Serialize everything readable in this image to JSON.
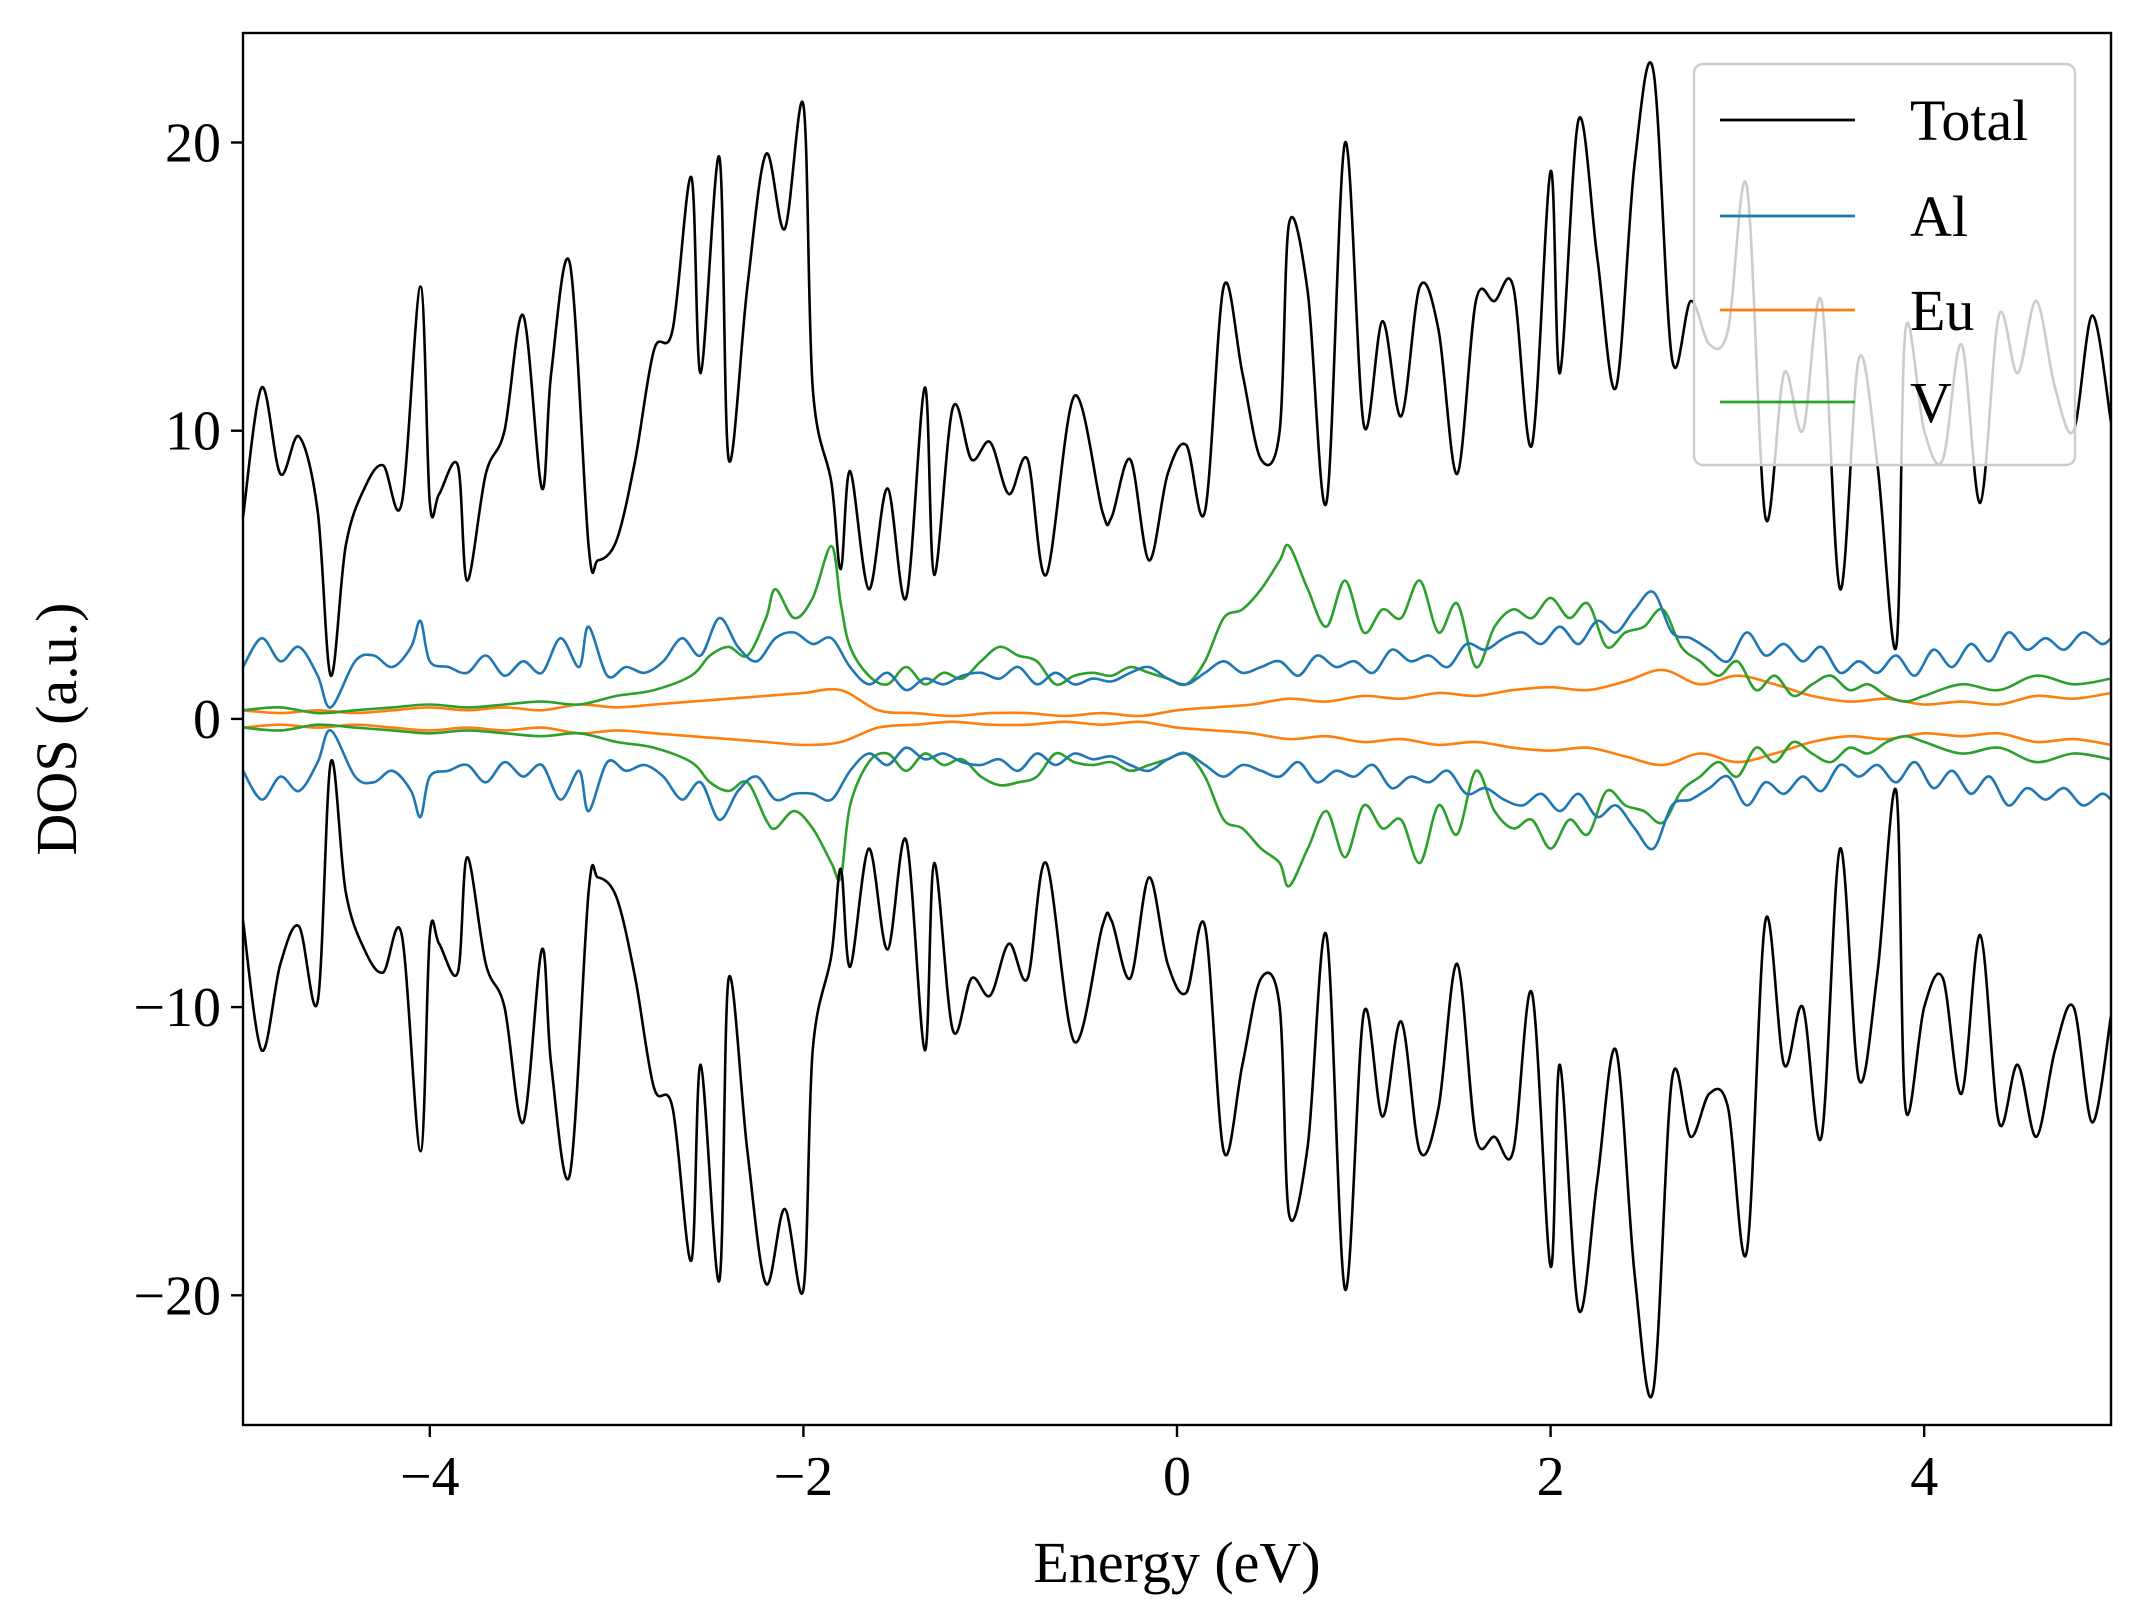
{
  "chart_data": {
    "type": "line",
    "xlabel": "Energy (eV)",
    "ylabel": "DOS (a.u.)",
    "xlim": [
      -5,
      5
    ],
    "ylim": [
      -24.5,
      23.8
    ],
    "xticks": [
      -4,
      -2,
      0,
      2,
      4
    ],
    "yticks": [
      -20,
      -10,
      0,
      10,
      20
    ],
    "xtick_labels": [
      "−4",
      "−2",
      "0",
      "2",
      "4"
    ],
    "ytick_labels": [
      "−20",
      "−10",
      "0",
      "10",
      "20"
    ],
    "grid": false,
    "legend_position": "top-right",
    "spin_polarized": true,
    "series": [
      {
        "name": "Total",
        "color": "#000000",
        "x": [
          -5.0,
          -4.9,
          -4.8,
          -4.7,
          -4.6,
          -4.53,
          -4.45,
          -4.35,
          -4.25,
          -4.15,
          -4.05,
          -4.0,
          -3.95,
          -3.85,
          -3.8,
          -3.7,
          -3.6,
          -3.5,
          -3.4,
          -3.35,
          -3.25,
          -3.15,
          -3.1,
          -3.0,
          -2.9,
          -2.8,
          -2.7,
          -2.6,
          -2.55,
          -2.45,
          -2.4,
          -2.3,
          -2.2,
          -2.1,
          -2.0,
          -1.95,
          -1.85,
          -1.8,
          -1.75,
          -1.65,
          -1.55,
          -1.45,
          -1.35,
          -1.3,
          -1.2,
          -1.1,
          -1.0,
          -0.9,
          -0.8,
          -0.7,
          -0.55,
          -0.4,
          -0.35,
          -0.25,
          -0.15,
          -0.05,
          0.05,
          0.15,
          0.25,
          0.35,
          0.45,
          0.55,
          0.6,
          0.7,
          0.8,
          0.9,
          1.0,
          1.1,
          1.2,
          1.3,
          1.4,
          1.5,
          1.6,
          1.7,
          1.8,
          1.9,
          2.0,
          2.05,
          2.15,
          2.25,
          2.35,
          2.45,
          2.55,
          2.65,
          2.75,
          2.85,
          2.95,
          3.05,
          3.15,
          3.25,
          3.35,
          3.45,
          3.55,
          3.65,
          3.75,
          3.85,
          3.9,
          4.0,
          4.1,
          4.2,
          4.3,
          4.4,
          4.5,
          4.6,
          4.7,
          4.8,
          4.9,
          5.0
        ],
        "up": [
          7.0,
          11.5,
          8.5,
          9.8,
          7.2,
          1.5,
          6.0,
          8.0,
          8.8,
          7.5,
          15.0,
          7.5,
          7.8,
          8.8,
          4.8,
          8.5,
          10.0,
          14.0,
          8.0,
          12.0,
          15.8,
          6.0,
          5.5,
          6.2,
          9.0,
          12.8,
          13.5,
          18.8,
          12.0,
          19.5,
          9.0,
          15.0,
          19.6,
          17.0,
          21.3,
          11.5,
          8.2,
          5.2,
          8.6,
          4.5,
          8.0,
          4.2,
          11.5,
          5.0,
          10.8,
          9.0,
          9.6,
          7.8,
          9.0,
          5.0,
          11.2,
          7.2,
          7.0,
          9.0,
          5.5,
          8.5,
          9.5,
          7.2,
          15.0,
          12.0,
          9.0,
          10.0,
          17.2,
          14.8,
          7.5,
          20.0,
          10.2,
          13.8,
          10.5,
          15.0,
          13.5,
          8.5,
          14.5,
          14.5,
          15.0,
          9.5,
          19.0,
          12.0,
          20.8,
          16.0,
          11.5,
          19.3,
          22.5,
          12.5,
          14.5,
          13.0,
          13.5,
          18.5,
          7.0,
          12.0,
          10.0,
          14.5,
          4.5,
          12.5,
          8.8,
          2.5,
          13.5,
          10.0,
          9.0,
          13.0,
          7.5,
          14.0,
          12.0,
          14.5,
          11.5,
          10.0,
          14.0,
          10.3
        ],
        "down": [
          -7.0,
          -11.5,
          -8.5,
          -7.2,
          -9.8,
          -1.5,
          -6.0,
          -8.0,
          -8.8,
          -7.5,
          -15.0,
          -7.5,
          -7.8,
          -8.8,
          -4.8,
          -8.5,
          -10.0,
          -14.0,
          -8.0,
          -12.0,
          -15.8,
          -6.0,
          -5.5,
          -6.2,
          -9.0,
          -12.8,
          -13.5,
          -18.8,
          -12.0,
          -19.5,
          -9.0,
          -15.0,
          -19.6,
          -17.0,
          -19.8,
          -11.5,
          -8.2,
          -5.2,
          -8.6,
          -4.5,
          -8.0,
          -4.2,
          -11.5,
          -5.0,
          -10.8,
          -9.0,
          -9.6,
          -7.8,
          -9.0,
          -5.0,
          -11.2,
          -7.2,
          -7.0,
          -9.0,
          -5.5,
          -8.5,
          -9.5,
          -7.2,
          -15.0,
          -12.0,
          -9.0,
          -10.0,
          -17.2,
          -14.8,
          -7.5,
          -19.8,
          -10.2,
          -13.8,
          -10.5,
          -15.0,
          -13.5,
          -8.5,
          -14.5,
          -14.5,
          -15.0,
          -9.5,
          -19.0,
          -12.0,
          -20.5,
          -16.0,
          -11.5,
          -19.3,
          -23.3,
          -12.5,
          -14.5,
          -13.0,
          -13.5,
          -18.5,
          -7.0,
          -12.0,
          -10.0,
          -14.5,
          -4.5,
          -12.5,
          -8.8,
          -2.5,
          -13.5,
          -10.0,
          -9.0,
          -13.0,
          -7.5,
          -14.0,
          -12.0,
          -14.5,
          -11.5,
          -10.0,
          -14.0,
          -10.3
        ]
      },
      {
        "name": "Al",
        "color": "#1f77b4",
        "x": [
          -5.0,
          -4.9,
          -4.8,
          -4.7,
          -4.6,
          -4.53,
          -4.4,
          -4.3,
          -4.2,
          -4.1,
          -4.05,
          -4.0,
          -3.9,
          -3.8,
          -3.7,
          -3.6,
          -3.5,
          -3.4,
          -3.3,
          -3.2,
          -3.15,
          -3.05,
          -2.95,
          -2.85,
          -2.75,
          -2.65,
          -2.55,
          -2.45,
          -2.35,
          -2.25,
          -2.15,
          -2.05,
          -1.95,
          -1.85,
          -1.75,
          -1.65,
          -1.55,
          -1.45,
          -1.35,
          -1.25,
          -1.15,
          -1.05,
          -0.95,
          -0.85,
          -0.75,
          -0.65,
          -0.55,
          -0.45,
          -0.35,
          -0.25,
          -0.15,
          -0.05,
          0.05,
          0.15,
          0.25,
          0.35,
          0.45,
          0.55,
          0.65,
          0.75,
          0.85,
          0.95,
          1.05,
          1.15,
          1.25,
          1.35,
          1.45,
          1.55,
          1.65,
          1.75,
          1.85,
          1.95,
          2.05,
          2.15,
          2.25,
          2.35,
          2.45,
          2.55,
          2.65,
          2.75,
          2.85,
          2.95,
          3.05,
          3.15,
          3.25,
          3.35,
          3.45,
          3.55,
          3.65,
          3.75,
          3.85,
          3.95,
          4.05,
          4.15,
          4.25,
          4.35,
          4.45,
          4.55,
          4.65,
          4.75,
          4.85,
          4.95,
          5.0
        ],
        "up": [
          1.8,
          2.8,
          2.0,
          2.5,
          1.5,
          0.4,
          2.0,
          2.2,
          1.8,
          2.5,
          3.4,
          2.0,
          1.8,
          1.6,
          2.2,
          1.5,
          2.0,
          1.6,
          2.8,
          1.8,
          3.2,
          1.5,
          1.8,
          1.6,
          2.0,
          2.8,
          2.2,
          3.5,
          2.5,
          2.0,
          2.8,
          3.0,
          2.6,
          2.8,
          1.8,
          1.2,
          1.6,
          1.0,
          1.4,
          1.2,
          1.5,
          1.6,
          1.4,
          1.8,
          1.2,
          1.6,
          1.2,
          1.4,
          1.3,
          1.6,
          1.8,
          1.4,
          1.2,
          1.6,
          2.0,
          1.6,
          1.8,
          2.0,
          1.5,
          2.2,
          1.8,
          2.0,
          1.6,
          2.4,
          2.0,
          2.2,
          1.8,
          2.6,
          2.4,
          2.8,
          3.0,
          2.6,
          3.2,
          2.6,
          3.4,
          3.0,
          3.8,
          4.4,
          3.0,
          2.8,
          2.4,
          2.0,
          3.0,
          2.2,
          2.6,
          2.0,
          2.5,
          1.6,
          2.0,
          1.6,
          2.2,
          1.5,
          2.4,
          1.8,
          2.6,
          2.0,
          3.0,
          2.4,
          2.8,
          2.4,
          3.0,
          2.6,
          2.8
        ],
        "down": [
          -1.8,
          -2.8,
          -2.0,
          -2.5,
          -1.5,
          -0.4,
          -2.0,
          -2.2,
          -1.8,
          -2.5,
          -3.4,
          -2.0,
          -1.8,
          -1.6,
          -2.2,
          -1.5,
          -2.0,
          -1.6,
          -2.8,
          -1.8,
          -3.2,
          -1.5,
          -1.8,
          -1.6,
          -2.0,
          -2.8,
          -2.2,
          -3.5,
          -2.5,
          -2.0,
          -2.8,
          -2.6,
          -2.6,
          -2.8,
          -1.8,
          -1.2,
          -1.6,
          -1.0,
          -1.4,
          -1.2,
          -1.5,
          -1.6,
          -1.4,
          -1.8,
          -1.2,
          -1.6,
          -1.2,
          -1.4,
          -1.3,
          -1.6,
          -1.8,
          -1.4,
          -1.2,
          -1.6,
          -2.0,
          -1.6,
          -1.8,
          -2.0,
          -1.5,
          -2.2,
          -1.8,
          -2.0,
          -1.6,
          -2.4,
          -2.0,
          -2.2,
          -1.8,
          -2.6,
          -2.4,
          -2.8,
          -3.0,
          -2.6,
          -3.2,
          -2.6,
          -3.4,
          -3.0,
          -3.8,
          -4.5,
          -3.0,
          -2.8,
          -2.4,
          -2.0,
          -3.0,
          -2.2,
          -2.6,
          -2.0,
          -2.5,
          -1.6,
          -2.0,
          -1.6,
          -2.2,
          -1.5,
          -2.4,
          -1.8,
          -2.6,
          -2.0,
          -3.0,
          -2.4,
          -2.8,
          -2.4,
          -3.0,
          -2.6,
          -2.8
        ]
      },
      {
        "name": "Eu",
        "color": "#ff7f0e",
        "x": [
          -5.0,
          -4.8,
          -4.6,
          -4.4,
          -4.2,
          -4.0,
          -3.8,
          -3.6,
          -3.4,
          -3.2,
          -3.0,
          -2.8,
          -2.6,
          -2.4,
          -2.2,
          -2.0,
          -1.8,
          -1.6,
          -1.4,
          -1.2,
          -1.0,
          -0.8,
          -0.6,
          -0.4,
          -0.2,
          0.0,
          0.2,
          0.4,
          0.6,
          0.8,
          1.0,
          1.2,
          1.4,
          1.6,
          1.8,
          2.0,
          2.2,
          2.4,
          2.6,
          2.8,
          3.0,
          3.2,
          3.4,
          3.6,
          3.8,
          4.0,
          4.2,
          4.4,
          4.6,
          4.8,
          5.0
        ],
        "up": [
          0.3,
          0.2,
          0.3,
          0.2,
          0.3,
          0.4,
          0.3,
          0.4,
          0.3,
          0.5,
          0.4,
          0.5,
          0.6,
          0.7,
          0.8,
          0.9,
          1.0,
          0.3,
          0.2,
          0.1,
          0.2,
          0.2,
          0.1,
          0.2,
          0.1,
          0.3,
          0.4,
          0.5,
          0.7,
          0.6,
          0.8,
          0.7,
          0.9,
          0.8,
          1.0,
          1.1,
          1.0,
          1.3,
          1.7,
          1.2,
          1.5,
          1.2,
          0.8,
          0.6,
          0.7,
          0.5,
          0.6,
          0.5,
          0.8,
          0.7,
          0.9
        ],
        "down": [
          -0.3,
          -0.2,
          -0.3,
          -0.2,
          -0.3,
          -0.4,
          -0.3,
          -0.4,
          -0.3,
          -0.5,
          -0.4,
          -0.5,
          -0.6,
          -0.7,
          -0.8,
          -0.9,
          -0.8,
          -0.3,
          -0.2,
          -0.1,
          -0.2,
          -0.2,
          -0.1,
          -0.2,
          -0.1,
          -0.3,
          -0.4,
          -0.5,
          -0.7,
          -0.6,
          -0.8,
          -0.7,
          -0.9,
          -0.8,
          -1.0,
          -1.1,
          -1.0,
          -1.3,
          -1.6,
          -1.2,
          -1.5,
          -1.2,
          -0.8,
          -0.6,
          -0.7,
          -0.5,
          -0.6,
          -0.5,
          -0.8,
          -0.7,
          -0.9
        ]
      },
      {
        "name": "V",
        "color": "#2ca02c",
        "x": [
          -5.0,
          -4.8,
          -4.6,
          -4.4,
          -4.2,
          -4.0,
          -3.8,
          -3.6,
          -3.4,
          -3.2,
          -3.0,
          -2.8,
          -2.6,
          -2.5,
          -2.4,
          -2.3,
          -2.2,
          -2.15,
          -2.05,
          -1.95,
          -1.85,
          -1.8,
          -1.75,
          -1.65,
          -1.55,
          -1.45,
          -1.35,
          -1.25,
          -1.15,
          -1.05,
          -0.95,
          -0.85,
          -0.75,
          -0.65,
          -0.55,
          -0.45,
          -0.35,
          -0.25,
          -0.15,
          -0.05,
          0.05,
          0.15,
          0.25,
          0.35,
          0.45,
          0.55,
          0.6,
          0.7,
          0.8,
          0.9,
          1.0,
          1.1,
          1.2,
          1.3,
          1.4,
          1.5,
          1.6,
          1.7,
          1.8,
          1.9,
          2.0,
          2.1,
          2.2,
          2.3,
          2.4,
          2.5,
          2.6,
          2.7,
          2.8,
          2.9,
          3.0,
          3.1,
          3.2,
          3.3,
          3.4,
          3.5,
          3.6,
          3.7,
          3.8,
          3.9,
          4.0,
          4.2,
          4.4,
          4.6,
          4.8,
          5.0
        ],
        "up": [
          0.3,
          0.4,
          0.2,
          0.3,
          0.4,
          0.5,
          0.4,
          0.5,
          0.6,
          0.5,
          0.8,
          1.0,
          1.5,
          2.2,
          2.5,
          2.2,
          3.5,
          4.5,
          3.5,
          4.2,
          6.0,
          4.0,
          2.5,
          1.5,
          1.2,
          1.8,
          1.2,
          1.6,
          1.4,
          2.0,
          2.5,
          2.2,
          2.0,
          1.2,
          1.5,
          1.6,
          1.5,
          1.8,
          1.6,
          1.4,
          1.2,
          2.0,
          3.5,
          3.8,
          4.5,
          5.5,
          6.0,
          4.5,
          3.2,
          4.8,
          3.0,
          3.8,
          3.5,
          4.8,
          3.0,
          4.0,
          1.8,
          3.2,
          3.8,
          3.5,
          4.2,
          3.5,
          4.0,
          2.5,
          3.0,
          3.2,
          3.8,
          2.5,
          2.0,
          1.5,
          2.0,
          1.0,
          1.5,
          0.8,
          1.2,
          1.5,
          1.0,
          1.2,
          0.8,
          0.6,
          0.8,
          1.2,
          1.0,
          1.5,
          1.2,
          1.4
        ],
        "down": [
          -0.3,
          -0.4,
          -0.2,
          -0.3,
          -0.4,
          -0.5,
          -0.4,
          -0.5,
          -0.6,
          -0.5,
          -0.8,
          -1.0,
          -1.5,
          -2.2,
          -2.5,
          -2.2,
          -3.5,
          -3.8,
          -3.2,
          -3.8,
          -5.0,
          -5.5,
          -3.0,
          -1.5,
          -1.2,
          -1.8,
          -1.2,
          -1.6,
          -1.4,
          -2.0,
          -2.3,
          -2.2,
          -2.0,
          -1.2,
          -1.5,
          -1.6,
          -1.5,
          -1.8,
          -1.6,
          -1.4,
          -1.2,
          -2.0,
          -3.5,
          -3.8,
          -4.5,
          -5.0,
          -5.8,
          -4.5,
          -3.2,
          -4.8,
          -3.0,
          -3.8,
          -3.5,
          -5.0,
          -3.0,
          -4.0,
          -1.8,
          -3.2,
          -3.8,
          -3.5,
          -4.5,
          -3.5,
          -4.0,
          -2.5,
          -3.0,
          -3.2,
          -3.6,
          -2.5,
          -2.0,
          -1.5,
          -2.0,
          -1.0,
          -1.5,
          -0.8,
          -1.2,
          -1.5,
          -1.0,
          -1.2,
          -0.8,
          -0.6,
          -0.8,
          -1.2,
          -1.0,
          -1.5,
          -1.2,
          -1.4
        ]
      }
    ]
  }
}
